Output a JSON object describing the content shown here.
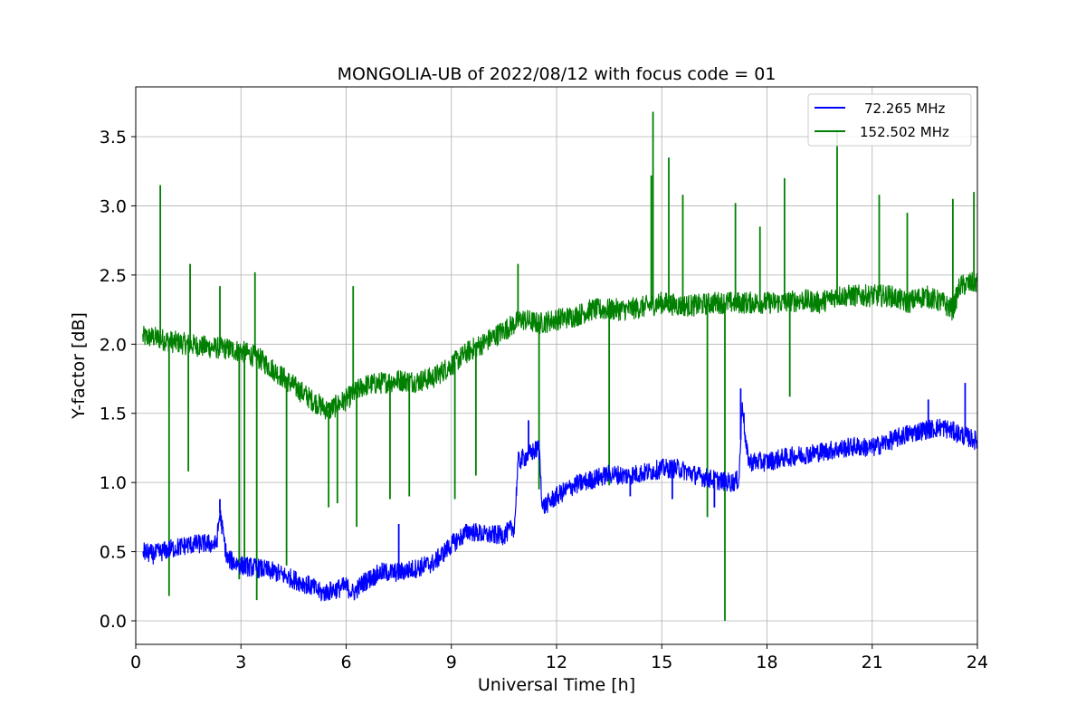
{
  "chart_data": {
    "type": "line",
    "title": "MONGOLIA-UB of 2022/08/12 with focus code = 01",
    "xlabel": "Universal Time [h]",
    "ylabel": "Y-factor [dB]",
    "xlim": [
      0,
      24
    ],
    "ylim": [
      -0.17,
      3.86
    ],
    "xticks": [
      0,
      3,
      6,
      9,
      12,
      15,
      18,
      21,
      24
    ],
    "xtick_labels": [
      "0",
      "3",
      "6",
      "9",
      "12",
      "15",
      "18",
      "21",
      "24"
    ],
    "yticks": [
      0.0,
      0.5,
      1.0,
      1.5,
      2.0,
      2.5,
      3.0,
      3.5
    ],
    "ytick_labels": [
      "0.0",
      "0.5",
      "1.0",
      "1.5",
      "2.0",
      "2.5",
      "3.0",
      "3.5"
    ],
    "grid": true,
    "legend_position": "top-right",
    "series": [
      {
        "name": "72.265 MHz",
        "color": "#0000ff",
        "x": [
          0.2,
          0.5,
          1.0,
          1.5,
          2.0,
          2.3,
          2.4,
          2.6,
          3.0,
          3.5,
          4.0,
          4.5,
          5.0,
          5.3,
          5.6,
          6.0,
          6.2,
          6.5,
          7.0,
          7.5,
          8.0,
          8.5,
          9.0,
          9.5,
          10.0,
          10.5,
          10.8,
          10.9,
          11.2,
          11.5,
          11.6,
          12.0,
          12.5,
          13.0,
          13.5,
          14.0,
          14.5,
          15.0,
          15.5,
          16.0,
          16.5,
          17.0,
          17.2,
          17.3,
          17.4,
          17.5,
          18.0,
          18.5,
          19.0,
          19.5,
          20.0,
          20.5,
          21.0,
          21.5,
          22.0,
          22.5,
          23.0,
          23.5,
          24.0
        ],
        "y": [
          0.5,
          0.48,
          0.52,
          0.55,
          0.56,
          0.55,
          0.78,
          0.45,
          0.4,
          0.38,
          0.35,
          0.3,
          0.25,
          0.2,
          0.22,
          0.25,
          0.2,
          0.28,
          0.35,
          0.35,
          0.38,
          0.42,
          0.55,
          0.65,
          0.62,
          0.62,
          0.68,
          1.15,
          1.2,
          1.25,
          0.82,
          0.9,
          0.98,
          1.02,
          1.06,
          1.05,
          1.07,
          1.1,
          1.1,
          1.05,
          1.02,
          1.0,
          1.02,
          1.6,
          1.25,
          1.15,
          1.15,
          1.18,
          1.2,
          1.22,
          1.24,
          1.26,
          1.25,
          1.3,
          1.35,
          1.38,
          1.4,
          1.35,
          1.3
        ]
      },
      {
        "name": "152.502 MHz",
        "color": "#008000",
        "x": [
          0.2,
          0.5,
          1.0,
          1.5,
          2.0,
          2.5,
          3.0,
          3.5,
          4.0,
          4.5,
          5.0,
          5.5,
          6.0,
          6.5,
          7.0,
          7.5,
          8.0,
          8.5,
          9.0,
          9.5,
          10.0,
          10.5,
          11.0,
          11.5,
          12.0,
          12.5,
          13.0,
          13.5,
          14.0,
          14.5,
          15.0,
          15.5,
          16.0,
          16.5,
          17.0,
          17.5,
          18.0,
          18.5,
          19.0,
          19.5,
          20.0,
          20.5,
          21.0,
          21.5,
          22.0,
          22.5,
          23.0,
          23.3,
          23.5,
          24.0
        ],
        "y": [
          2.05,
          2.05,
          2.02,
          2.0,
          1.98,
          1.97,
          1.95,
          1.9,
          1.8,
          1.7,
          1.6,
          1.52,
          1.6,
          1.7,
          1.72,
          1.74,
          1.73,
          1.76,
          1.85,
          1.95,
          2.02,
          2.1,
          2.18,
          2.15,
          2.18,
          2.2,
          2.25,
          2.25,
          2.25,
          2.27,
          2.3,
          2.28,
          2.28,
          2.3,
          2.3,
          2.3,
          2.3,
          2.3,
          2.32,
          2.3,
          2.35,
          2.35,
          2.35,
          2.35,
          2.3,
          2.35,
          2.3,
          2.25,
          2.42,
          2.45
        ]
      }
    ],
    "spikes_152": [
      {
        "x": 0.7,
        "y": 3.15
      },
      {
        "x": 0.95,
        "y": 0.18
      },
      {
        "x": 1.55,
        "y": 2.58
      },
      {
        "x": 1.5,
        "y": 1.08
      },
      {
        "x": 2.4,
        "y": 2.42
      },
      {
        "x": 2.95,
        "y": 0.3
      },
      {
        "x": 3.1,
        "y": 0.4
      },
      {
        "x": 3.4,
        "y": 2.52
      },
      {
        "x": 3.45,
        "y": 0.15
      },
      {
        "x": 4.3,
        "y": 0.4
      },
      {
        "x": 5.5,
        "y": 0.82
      },
      {
        "x": 5.75,
        "y": 0.85
      },
      {
        "x": 6.3,
        "y": 0.68
      },
      {
        "x": 6.2,
        "y": 2.42
      },
      {
        "x": 7.25,
        "y": 0.88
      },
      {
        "x": 7.8,
        "y": 0.9
      },
      {
        "x": 9.1,
        "y": 0.88
      },
      {
        "x": 9.7,
        "y": 1.05
      },
      {
        "x": 10.9,
        "y": 2.58
      },
      {
        "x": 11.5,
        "y": 0.95
      },
      {
        "x": 13.5,
        "y": 0.98
      },
      {
        "x": 14.75,
        "y": 3.68
      },
      {
        "x": 14.7,
        "y": 3.22
      },
      {
        "x": 15.2,
        "y": 3.35
      },
      {
        "x": 15.6,
        "y": 3.08
      },
      {
        "x": 16.3,
        "y": 0.75
      },
      {
        "x": 16.8,
        "y": 0.0
      },
      {
        "x": 17.1,
        "y": 3.02
      },
      {
        "x": 17.8,
        "y": 2.85
      },
      {
        "x": 18.5,
        "y": 3.2
      },
      {
        "x": 18.65,
        "y": 1.62
      },
      {
        "x": 20.0,
        "y": 3.55
      },
      {
        "x": 21.2,
        "y": 3.08
      },
      {
        "x": 22.0,
        "y": 2.95
      },
      {
        "x": 23.3,
        "y": 3.05
      },
      {
        "x": 23.9,
        "y": 3.1
      }
    ],
    "spikes_72": [
      {
        "x": 2.4,
        "y": 0.88
      },
      {
        "x": 7.5,
        "y": 0.7
      },
      {
        "x": 11.2,
        "y": 1.45
      },
      {
        "x": 14.1,
        "y": 0.9
      },
      {
        "x": 15.3,
        "y": 0.88
      },
      {
        "x": 16.5,
        "y": 0.82
      },
      {
        "x": 17.25,
        "y": 1.68
      },
      {
        "x": 22.6,
        "y": 1.6
      },
      {
        "x": 23.65,
        "y": 1.72
      }
    ]
  }
}
